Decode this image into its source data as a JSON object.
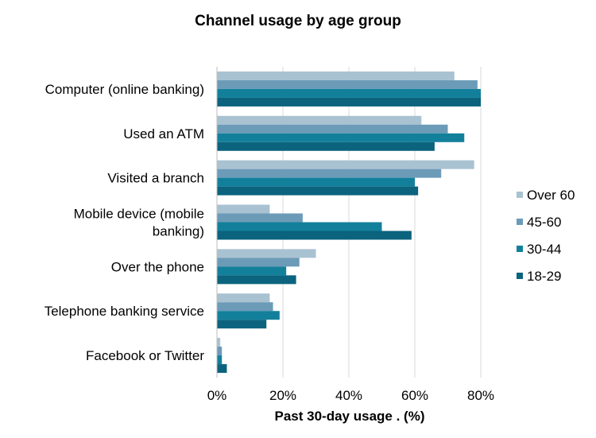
{
  "chart_data": {
    "type": "bar",
    "orientation": "horizontal",
    "title": "Channel usage by age group",
    "xlabel": "Past 30-day usage . (%)",
    "ylabel": "",
    "xlim": [
      0,
      80
    ],
    "x_ticks": [
      "0%",
      "20%",
      "40%",
      "60%",
      "80%"
    ],
    "x_tick_values": [
      0,
      20,
      40,
      60,
      80
    ],
    "grid": "vertical",
    "legend_position": "right",
    "categories": [
      [
        "Computer (online banking)"
      ],
      [
        "Used an ATM"
      ],
      [
        "Visited a branch"
      ],
      [
        "Mobile device (mobile",
        "banking)"
      ],
      [
        "Over the phone"
      ],
      [
        "Telephone banking service"
      ],
      [
        "Facebook or Twitter"
      ]
    ],
    "series": [
      {
        "name": "Over 60",
        "color": "#a9c2d2",
        "values": [
          72,
          62,
          78,
          16,
          30,
          16,
          1
        ]
      },
      {
        "name": "45-60",
        "color": "#6c9bb8",
        "values": [
          79,
          70,
          68,
          26,
          25,
          17,
          1.5
        ]
      },
      {
        "name": "30-44",
        "color": "#13809b",
        "values": [
          80,
          75,
          60,
          50,
          21,
          19,
          1.5
        ]
      },
      {
        "name": "18-29",
        "color": "#0b637e",
        "values": [
          80,
          66,
          61,
          59,
          24,
          15,
          3
        ]
      }
    ]
  }
}
